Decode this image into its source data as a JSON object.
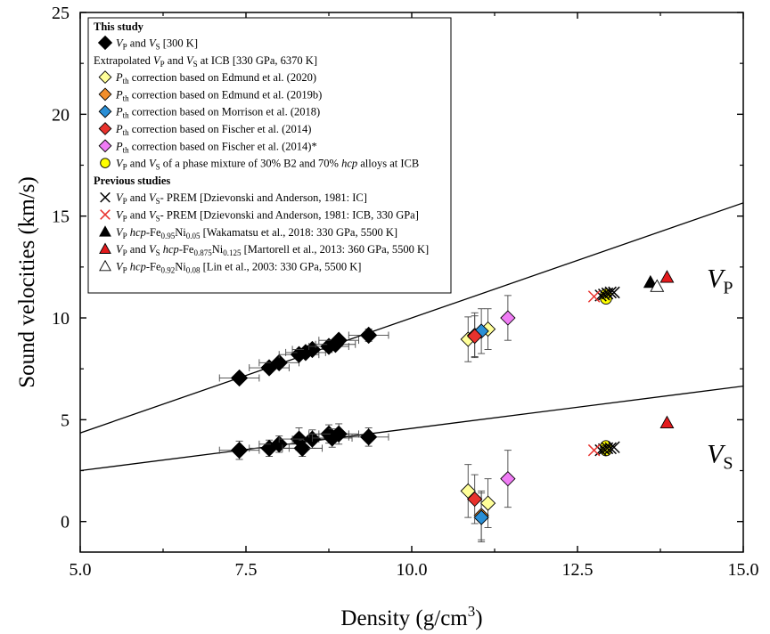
{
  "chart_data": {
    "type": "scatter",
    "xlabel": "Density (g/cm",
    "xlabel_sup": "3",
    "xlabel_close": ")",
    "ylabel": "Sound velocities (km/s)",
    "xlim": [
      5.0,
      15.0
    ],
    "ylim": [
      -1.5,
      25
    ],
    "x_ticks": [
      5.0,
      7.5,
      10.0,
      12.5,
      15.0
    ],
    "x_tick_labels": [
      "5.0",
      "7.5",
      "10.0",
      "12.5",
      "15.0"
    ],
    "y_ticks": [
      0,
      5,
      10,
      15,
      20,
      25
    ],
    "y_tick_labels": [
      "0",
      "5",
      "10",
      "15",
      "20",
      "25"
    ],
    "grid": false,
    "legend_position": "top-left",
    "panel_labels": [
      {
        "main": "V",
        "sub": "P",
        "x": 14.45,
        "y": 11.5
      },
      {
        "main": "V",
        "sub": "S",
        "x": 14.45,
        "y": 2.9
      }
    ],
    "fit_lines": [
      {
        "name": "Vp fit",
        "x": [
          5.0,
          15.0
        ],
        "y": [
          4.35,
          15.65
        ]
      },
      {
        "name": "Vs fit",
        "x": [
          5.0,
          15.0
        ],
        "y": [
          2.5,
          6.65
        ]
      }
    ],
    "legend": {
      "this_study_heading": "This study",
      "extrapolated_heading": "Extrapolated",
      "previous_heading": "Previous studies",
      "entries": [
        {
          "key": "vpvs300",
          "marker": "diamond",
          "color": "#000000",
          "parts": [
            [
              "V",
              "i"
            ],
            [
              "P",
              "sub"
            ],
            [
              " and ",
              ""
            ],
            [
              "V",
              "i"
            ],
            [
              "S",
              "sub"
            ],
            [
              " [300 K]",
              ""
            ]
          ]
        },
        {
          "key": "extrap",
          "marker": "none",
          "color": "",
          "parts": [
            [
              "Extrapolated  ",
              ""
            ],
            [
              "V",
              "i"
            ],
            [
              "P",
              "sub"
            ],
            [
              " and ",
              ""
            ],
            [
              "V",
              "i"
            ],
            [
              "S",
              "sub"
            ],
            [
              " at ICB [330 GPa, 6370 K]",
              ""
            ]
          ]
        },
        {
          "key": "edmund2020",
          "marker": "diamond",
          "color": "#ffff99",
          "parts": [
            [
              "P",
              "i"
            ],
            [
              "th",
              "sub"
            ],
            [
              " correction based on Edmund et al. (2020)",
              ""
            ]
          ]
        },
        {
          "key": "edmund2019",
          "marker": "diamond",
          "color": "#f28e2b",
          "parts": [
            [
              "P",
              "i"
            ],
            [
              "th",
              "sub"
            ],
            [
              " correction based on Edmund et al. (2019b)",
              ""
            ]
          ]
        },
        {
          "key": "morrison",
          "marker": "diamond",
          "color": "#2a8fd6",
          "parts": [
            [
              "P",
              "i"
            ],
            [
              "th",
              "sub"
            ],
            [
              " correction based on Morrison et al. (2018)",
              ""
            ]
          ]
        },
        {
          "key": "fischer",
          "marker": "diamond",
          "color": "#e8322d",
          "parts": [
            [
              "P",
              "i"
            ],
            [
              "th",
              "sub"
            ],
            [
              " correction based on Fischer  et al. (2014)",
              ""
            ]
          ]
        },
        {
          "key": "fischerstar",
          "marker": "diamond",
          "color": "#f07cf5",
          "parts": [
            [
              "P",
              "i"
            ],
            [
              "th",
              "sub"
            ],
            [
              " correction based on Fischer  et al. (2014)*",
              ""
            ]
          ]
        },
        {
          "key": "mixture",
          "marker": "circle",
          "color": "#ffff00",
          "parts": [
            [
              "V",
              "i"
            ],
            [
              "P",
              "sub"
            ],
            [
              " and ",
              ""
            ],
            [
              "V",
              "i"
            ],
            [
              "S",
              "sub"
            ],
            [
              " of a phase mixture of 30% B2 and 70% ",
              ""
            ],
            [
              "hcp",
              "i"
            ],
            [
              " alloys at ICB",
              ""
            ]
          ]
        },
        {
          "key": "previous",
          "marker": "none",
          "color": "",
          "parts": [
            [
              "Previous studies",
              "b"
            ]
          ]
        },
        {
          "key": "prem_ic",
          "marker": "x",
          "color": "#000000",
          "parts": [
            [
              "V",
              "i"
            ],
            [
              "P",
              "sub"
            ],
            [
              " and ",
              ""
            ],
            [
              "V",
              "i"
            ],
            [
              "S",
              "sub"
            ],
            [
              "- PREM [Dzievonski and Anderson, 1981: IC]",
              ""
            ]
          ]
        },
        {
          "key": "prem_icb",
          "marker": "x",
          "color": "#e8322d",
          "parts": [
            [
              "V",
              "i"
            ],
            [
              "P",
              "sub"
            ],
            [
              " and ",
              ""
            ],
            [
              "V",
              "i"
            ],
            [
              "S",
              "sub"
            ],
            [
              "- PREM [Dzievonski and Anderson, 1981: ICB, 330 GPa]",
              ""
            ]
          ]
        },
        {
          "key": "wakamatsu",
          "marker": "triangle",
          "color": "#000000",
          "parts": [
            [
              "V",
              "i"
            ],
            [
              "P",
              "sub"
            ],
            [
              " ",
              ""
            ],
            [
              "hcp",
              "i"
            ],
            [
              "-Fe",
              ""
            ],
            [
              "0.95",
              "sub"
            ],
            [
              "Ni",
              ""
            ],
            [
              "0.05",
              "sub"
            ],
            [
              " [Wakamatsu et al., 2018: 330 GPa, 5500 K]",
              ""
            ]
          ]
        },
        {
          "key": "martorell",
          "marker": "triangle",
          "color": "#e31a1c",
          "parts": [
            [
              "V",
              "i"
            ],
            [
              "P",
              "sub"
            ],
            [
              " and ",
              ""
            ],
            [
              "V",
              "i"
            ],
            [
              "S",
              "sub"
            ],
            [
              " ",
              ""
            ],
            [
              "hcp",
              "i"
            ],
            [
              "-Fe",
              ""
            ],
            [
              "0.875",
              "sub"
            ],
            [
              "Ni",
              ""
            ],
            [
              "0.125",
              "sub"
            ],
            [
              " [Martorell et al., 2013: 360 GPa, 5500 K]",
              ""
            ]
          ]
        },
        {
          "key": "lin",
          "marker": "triangle",
          "color": "#ffffff",
          "parts": [
            [
              "V",
              "i"
            ],
            [
              "P",
              "sub"
            ],
            [
              " ",
              ""
            ],
            [
              "hcp",
              "i"
            ],
            [
              "-Fe",
              ""
            ],
            [
              "0.92",
              "sub"
            ],
            [
              "Ni",
              ""
            ],
            [
              "0.08",
              "sub"
            ],
            [
              " [Lin et al., 2003: 330 GPa, 5500 K]",
              ""
            ]
          ]
        }
      ]
    },
    "series": [
      {
        "key": "vpvs300",
        "marker": "diamond",
        "color": "#000000",
        "points": [
          [
            7.4,
            7.05,
            0.3,
            0.1
          ],
          [
            7.85,
            7.55,
            0.3,
            0.1
          ],
          [
            8.0,
            7.8,
            0.3,
            0.1
          ],
          [
            8.3,
            8.2,
            0.3,
            0.1
          ],
          [
            8.4,
            8.3,
            0.3,
            0.1
          ],
          [
            8.5,
            8.45,
            0.3,
            0.1
          ],
          [
            8.75,
            8.6,
            0.3,
            0.1
          ],
          [
            8.85,
            8.7,
            0.3,
            0.1
          ],
          [
            8.9,
            8.9,
            0.3,
            0.1
          ],
          [
            9.35,
            9.15,
            0.3,
            0.3
          ],
          [
            7.4,
            3.5,
            0.3,
            0.45
          ],
          [
            7.85,
            3.6,
            0.3,
            0.4
          ],
          [
            8.0,
            3.8,
            0.3,
            0.4
          ],
          [
            8.3,
            4.05,
            0.3,
            0.55
          ],
          [
            8.35,
            3.6,
            0.3,
            0.4
          ],
          [
            8.5,
            4.05,
            0.3,
            0.45
          ],
          [
            8.75,
            4.3,
            0.3,
            0.45
          ],
          [
            8.8,
            4.1,
            0.3,
            0.45
          ],
          [
            8.9,
            4.3,
            0.3,
            0.5
          ],
          [
            9.35,
            4.15,
            0.3,
            0.45
          ]
        ]
      },
      {
        "key": "edmund2020",
        "marker": "diamond",
        "color": "#ffff99",
        "points": [
          [
            10.85,
            8.95,
            0,
            1.1
          ],
          [
            11.15,
            9.45,
            0,
            1.0
          ],
          [
            10.85,
            1.5,
            0,
            1.3
          ],
          [
            11.15,
            0.9,
            0,
            1.2
          ]
        ]
      },
      {
        "key": "edmund2019",
        "marker": "diamond",
        "color": "#f28e2b",
        "points": [
          [
            10.95,
            9.15,
            0,
            1.1
          ],
          [
            11.05,
            0.3,
            0,
            1.2
          ]
        ]
      },
      {
        "key": "morrison",
        "marker": "diamond",
        "color": "#2a8fd6",
        "points": [
          [
            11.05,
            9.35,
            0,
            1.1
          ],
          [
            11.05,
            0.2,
            0,
            1.2
          ]
        ]
      },
      {
        "key": "fischer",
        "marker": "diamond",
        "color": "#e8322d",
        "points": [
          [
            10.95,
            9.1,
            0,
            1.0
          ],
          [
            10.95,
            1.1,
            0,
            1.2
          ]
        ]
      },
      {
        "key": "fischerstar",
        "marker": "diamond",
        "color": "#f07cf5",
        "points": [
          [
            11.45,
            10.0,
            0,
            1.1
          ],
          [
            11.45,
            2.1,
            0,
            1.4
          ]
        ]
      },
      {
        "key": "mixture",
        "marker": "circle",
        "color": "#ffff00",
        "points": [
          [
            12.93,
            11.15,
            0,
            0
          ],
          [
            12.93,
            10.95,
            0,
            0
          ],
          [
            12.93,
            3.7,
            0,
            0
          ],
          [
            12.93,
            3.5,
            0,
            0
          ]
        ]
      },
      {
        "key": "prem_ic",
        "marker": "x",
        "color": "#000000",
        "points": [
          [
            12.85,
            11.1,
            0,
            0
          ],
          [
            12.9,
            11.15,
            0,
            0
          ],
          [
            12.95,
            11.2,
            0,
            0
          ],
          [
            13.0,
            11.25,
            0,
            0
          ],
          [
            13.05,
            11.25,
            0,
            0
          ],
          [
            12.85,
            3.5,
            0,
            0
          ],
          [
            12.9,
            3.55,
            0,
            0
          ],
          [
            12.95,
            3.6,
            0,
            0
          ],
          [
            13.0,
            3.6,
            0,
            0
          ],
          [
            13.05,
            3.65,
            0,
            0
          ]
        ]
      },
      {
        "key": "prem_icb",
        "marker": "x",
        "color": "#e8322d",
        "points": [
          [
            12.75,
            11.05,
            0,
            0
          ],
          [
            12.75,
            3.5,
            0,
            0
          ]
        ]
      },
      {
        "key": "wakamatsu",
        "marker": "triangle",
        "color": "#000000",
        "points": [
          [
            13.6,
            11.75,
            0,
            0
          ]
        ]
      },
      {
        "key": "martorell",
        "marker": "triangle",
        "color": "#e31a1c",
        "points": [
          [
            13.85,
            12.0,
            0,
            0
          ],
          [
            13.85,
            4.85,
            0,
            0
          ]
        ]
      },
      {
        "key": "lin",
        "marker": "triangle",
        "color": "#ffffff",
        "points": [
          [
            13.7,
            11.55,
            0,
            0
          ]
        ]
      }
    ]
  }
}
